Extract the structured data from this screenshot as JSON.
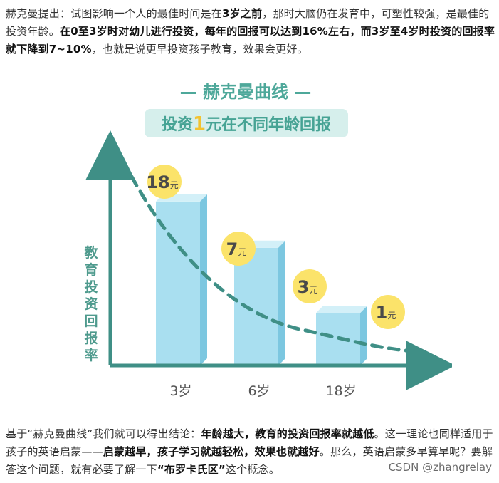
{
  "paragraph1": {
    "s1": "赫克曼提出：试图影响一个人的最佳时间是在",
    "b1": "3岁之前",
    "s2": "，那时大脑仍在发育中，可塑性较强，是最佳的投资年龄。",
    "b2": "在0至3岁时对幼儿进行投资，每年的回报可以达到16%左右，而3岁至4岁时投资的回报率就下降到7~10%",
    "s3": "，也就是说更早投资孩子教育，效果会更好。"
  },
  "paragraph2": {
    "s1": "基于“赫克曼曲线”我们就可以得出结论：",
    "b1": "年龄越大，教育的投资回报率就越低",
    "s2": "。这一理论也同样适用于孩子的英语启蒙——",
    "b2": "启蒙越早，孩子学习就越轻松，效果也就越好",
    "s3": "。那么，英语启蒙多早算早呢？要解答这个问题，就有必要了解一下",
    "b3": "“布罗卡氏区”",
    "s4": "这个概念。"
  },
  "watermark": "CSDN @zhangrelay",
  "chart_data": {
    "type": "bar",
    "title": "— 赫克曼曲线 —",
    "subtitle_pre": "投资",
    "subtitle_highlight": "1",
    "subtitle_post": "元在不同年龄回报",
    "ylabel": "教育投资回报率",
    "categories": [
      "3岁",
      "6岁",
      "18岁"
    ],
    "values": [
      0.78,
      0.56,
      0.25
    ],
    "value_scale_note": "",
    "curve_labels": [
      {
        "value": "18",
        "unit": "元"
      },
      {
        "value": "7",
        "unit": "元"
      },
      {
        "value": "3",
        "unit": "元"
      },
      {
        "value": "1",
        "unit": "元"
      }
    ],
    "colors": {
      "axis": "#3f8f86",
      "curve": "#3f8f86",
      "bar_front": "#a9dff0",
      "bar_side": "#7cc7e0",
      "bar_top": "#d3f0f8",
      "title": "#4ea89a",
      "subtitle_bg": "#d6efec",
      "subtitle_text": "#46a394",
      "highlight": "#f2c230",
      "badge_bg": "#fbe36a",
      "badge_text": "#4a4a4a",
      "axis_label": "#4e9a8d"
    }
  }
}
